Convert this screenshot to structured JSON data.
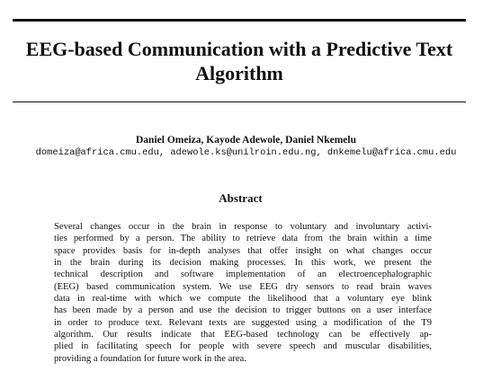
{
  "paper": {
    "title_lines": [
      "EEG-based Communication with a Predictive Text",
      "Algorithm"
    ],
    "authors": "Daniel Omeiza, Kayode Adewole, Daniel Nkemelu",
    "emails": "domeiza@africa.cmu.edu, adewole.ks@unilroin.edu.ng, dnkemelu@africa.cmu.edu",
    "abstract_heading": "Abstract",
    "abstract_lines": [
      "Several changes occur in the brain in response to voluntary and involuntary activi-",
      "ties performed by a person. The ability to retrieve data from the brain within a time",
      "space provides basis for in-depth analyses that offer insight on what changes occur",
      "in the brain during its decision making processes. In this work, we present the",
      "technical description and software implementation of an electroencephalographic",
      "(EEG) based communication system. We use EEG dry sensors to read brain waves",
      "data in real-time with which we compute the likelihood that a voluntary eye blink",
      "has been made by a person and use the decision to trigger buttons on a user interface",
      "in order to produce text. Relevant texts are suggested using a modification of the T9",
      "algorithm. Our results indicate that EEG-based technology can be effectively ap-",
      "plied in facilitating speech for people with severe speech and muscular disabilities,",
      "providing a foundation for future work in the area."
    ]
  }
}
